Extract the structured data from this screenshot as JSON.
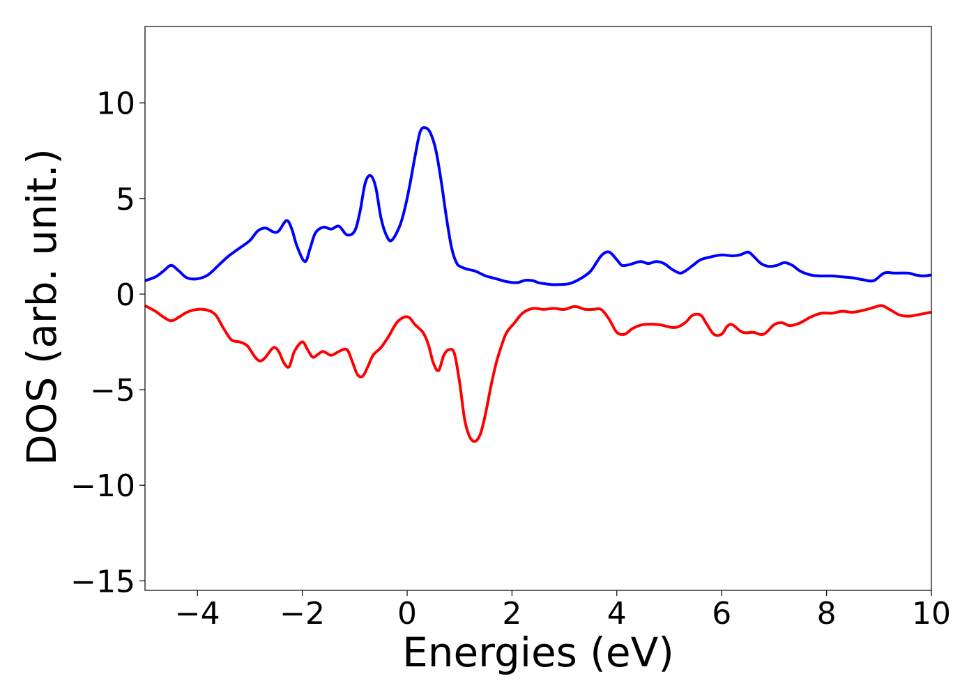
{
  "chart_data": {
    "type": "line",
    "title": "",
    "xlabel": "Energies (eV)",
    "ylabel": "DOS (arb. unit.)",
    "xlim": [
      -5,
      10
    ],
    "ylim": [
      -15.5,
      14
    ],
    "xticks": [
      -4,
      -2,
      0,
      2,
      4,
      6,
      8,
      10
    ],
    "xtick_labels": [
      "−4",
      "−2",
      "0",
      "2",
      "4",
      "6",
      "8",
      "10"
    ],
    "yticks": [
      -15,
      -10,
      -5,
      0,
      5,
      10
    ],
    "ytick_labels": [
      "−15",
      "−10",
      "−5",
      "0",
      "5",
      "10"
    ],
    "grid": false,
    "legend": false,
    "series": [
      {
        "color": "#0000ff",
        "x": [
          -5.0,
          -4.8,
          -4.65,
          -4.5,
          -4.35,
          -4.2,
          -4.0,
          -3.8,
          -3.6,
          -3.4,
          -3.2,
          -3.0,
          -2.85,
          -2.7,
          -2.55,
          -2.45,
          -2.3,
          -2.2,
          -2.1,
          -1.95,
          -1.85,
          -1.75,
          -1.6,
          -1.45,
          -1.3,
          -1.15,
          -1.0,
          -0.9,
          -0.8,
          -0.7,
          -0.6,
          -0.5,
          -0.4,
          -0.3,
          -0.15,
          -0.05,
          0.05,
          0.15,
          0.25,
          0.35,
          0.45,
          0.55,
          0.65,
          0.75,
          0.85,
          0.95,
          1.05,
          1.15,
          1.3,
          1.5,
          1.7,
          1.9,
          2.1,
          2.25,
          2.4,
          2.5,
          2.6,
          2.75,
          2.9,
          3.1,
          3.3,
          3.5,
          3.7,
          3.85,
          4.0,
          4.1,
          4.25,
          4.45,
          4.6,
          4.75,
          4.9,
          5.05,
          5.2,
          5.3,
          5.45,
          5.6,
          5.8,
          6.0,
          6.2,
          6.35,
          6.5,
          6.6,
          6.75,
          6.9,
          7.05,
          7.2,
          7.35,
          7.5,
          7.7,
          7.9,
          8.1,
          8.3,
          8.5,
          8.7,
          8.9,
          9.1,
          9.3,
          9.55,
          9.7,
          9.85,
          10.0
        ],
        "y": [
          0.7,
          0.9,
          1.2,
          1.5,
          1.2,
          0.85,
          0.8,
          1.0,
          1.5,
          2.0,
          2.4,
          2.8,
          3.3,
          3.45,
          3.25,
          3.3,
          3.85,
          3.4,
          2.5,
          1.7,
          2.4,
          3.2,
          3.5,
          3.4,
          3.55,
          3.1,
          3.3,
          4.3,
          5.8,
          6.2,
          5.6,
          4.0,
          3.1,
          2.8,
          3.5,
          4.4,
          5.7,
          7.2,
          8.5,
          8.7,
          8.4,
          7.5,
          5.9,
          4.0,
          2.4,
          1.6,
          1.4,
          1.3,
          1.2,
          0.95,
          0.8,
          0.65,
          0.6,
          0.72,
          0.7,
          0.6,
          0.55,
          0.5,
          0.5,
          0.55,
          0.8,
          1.2,
          2.0,
          2.2,
          1.8,
          1.5,
          1.55,
          1.7,
          1.6,
          1.7,
          1.6,
          1.3,
          1.1,
          1.2,
          1.5,
          1.8,
          1.95,
          2.05,
          2.0,
          2.05,
          2.2,
          2.0,
          1.6,
          1.45,
          1.5,
          1.65,
          1.5,
          1.2,
          1.0,
          0.95,
          0.95,
          0.9,
          0.85,
          0.75,
          0.7,
          1.1,
          1.1,
          1.1,
          1.0,
          0.95,
          1.0
        ]
      },
      {
        "color": "#ff0000",
        "x": [
          -5.0,
          -4.8,
          -4.65,
          -4.5,
          -4.35,
          -4.2,
          -4.0,
          -3.8,
          -3.65,
          -3.5,
          -3.35,
          -3.2,
          -3.05,
          -2.9,
          -2.8,
          -2.7,
          -2.55,
          -2.45,
          -2.35,
          -2.25,
          -2.15,
          -2.0,
          -1.9,
          -1.8,
          -1.7,
          -1.6,
          -1.45,
          -1.3,
          -1.15,
          -1.05,
          -0.95,
          -0.85,
          -0.75,
          -0.65,
          -0.5,
          -0.35,
          -0.2,
          -0.05,
          0.05,
          0.15,
          0.3,
          0.4,
          0.5,
          0.6,
          0.7,
          0.8,
          0.9,
          1.0,
          1.1,
          1.2,
          1.3,
          1.4,
          1.5,
          1.6,
          1.7,
          1.8,
          1.9,
          2.05,
          2.2,
          2.4,
          2.6,
          2.8,
          3.0,
          3.2,
          3.4,
          3.55,
          3.7,
          3.85,
          4.0,
          4.15,
          4.3,
          4.5,
          4.8,
          5.1,
          5.3,
          5.45,
          5.6,
          5.7,
          5.85,
          6.0,
          6.1,
          6.2,
          6.4,
          6.6,
          6.8,
          7.0,
          7.15,
          7.3,
          7.5,
          7.7,
          7.9,
          8.1,
          8.3,
          8.5,
          8.7,
          8.9,
          9.05,
          9.2,
          9.4,
          9.6,
          9.8,
          10.0
        ],
        "y": [
          -0.6,
          -0.9,
          -1.2,
          -1.4,
          -1.2,
          -0.95,
          -0.8,
          -0.85,
          -1.1,
          -1.8,
          -2.4,
          -2.5,
          -2.7,
          -3.3,
          -3.5,
          -3.3,
          -2.8,
          -3.0,
          -3.6,
          -3.8,
          -3.0,
          -2.5,
          -2.9,
          -3.3,
          -3.15,
          -3.0,
          -3.2,
          -3.0,
          -2.9,
          -3.5,
          -4.2,
          -4.3,
          -3.8,
          -3.2,
          -2.8,
          -2.2,
          -1.5,
          -1.2,
          -1.25,
          -1.6,
          -2.0,
          -2.6,
          -3.6,
          -4.0,
          -3.2,
          -2.9,
          -3.1,
          -4.6,
          -6.6,
          -7.5,
          -7.7,
          -7.3,
          -6.2,
          -4.8,
          -3.6,
          -2.7,
          -2.0,
          -1.5,
          -1.0,
          -0.75,
          -0.8,
          -0.75,
          -0.8,
          -0.65,
          -0.8,
          -0.8,
          -0.8,
          -1.3,
          -2.0,
          -2.1,
          -1.8,
          -1.6,
          -1.6,
          -1.75,
          -1.5,
          -1.1,
          -1.1,
          -1.5,
          -2.1,
          -2.1,
          -1.7,
          -1.6,
          -2.0,
          -2.0,
          -2.1,
          -1.6,
          -1.5,
          -1.65,
          -1.5,
          -1.2,
          -1.0,
          -1.0,
          -0.9,
          -0.95,
          -0.85,
          -0.7,
          -0.6,
          -0.8,
          -1.1,
          -1.15,
          -1.05,
          -0.95
        ]
      }
    ]
  }
}
